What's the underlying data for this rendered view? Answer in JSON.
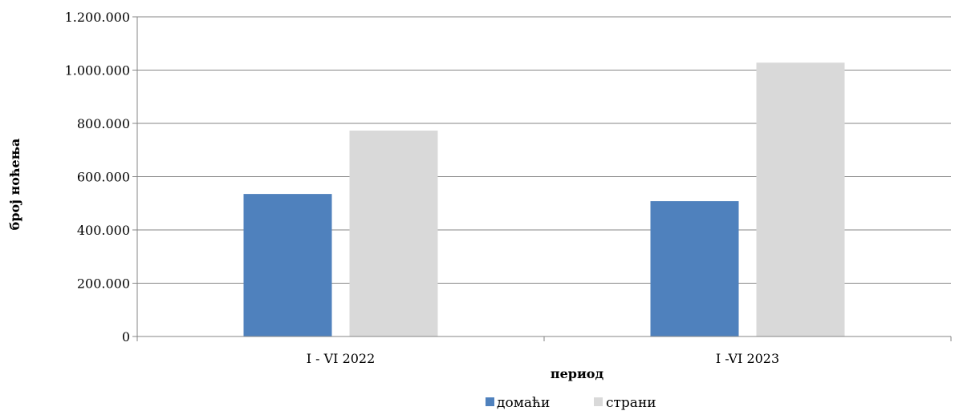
{
  "chart_data": {
    "type": "bar",
    "title": "",
    "xlabel": "период",
    "ylabel": "број ноћења",
    "categories": [
      "I - VI 2022",
      "I -VI 2023"
    ],
    "series": [
      {
        "name": "домаћи",
        "color": "#4F81BD",
        "values": [
          535000,
          508000
        ]
      },
      {
        "name": "страни",
        "color": "#D9D9D9",
        "values": [
          773000,
          1028000
        ]
      }
    ],
    "ylim": [
      0,
      1200000
    ],
    "yticks": [
      0,
      200000,
      400000,
      600000,
      800000,
      1000000,
      1200000
    ],
    "ytick_labels": [
      "0",
      "200.000",
      "400.000",
      "600.000",
      "800.000",
      "1.000.000",
      "1.200.000"
    ],
    "grid": true,
    "legend_position": "bottom"
  }
}
